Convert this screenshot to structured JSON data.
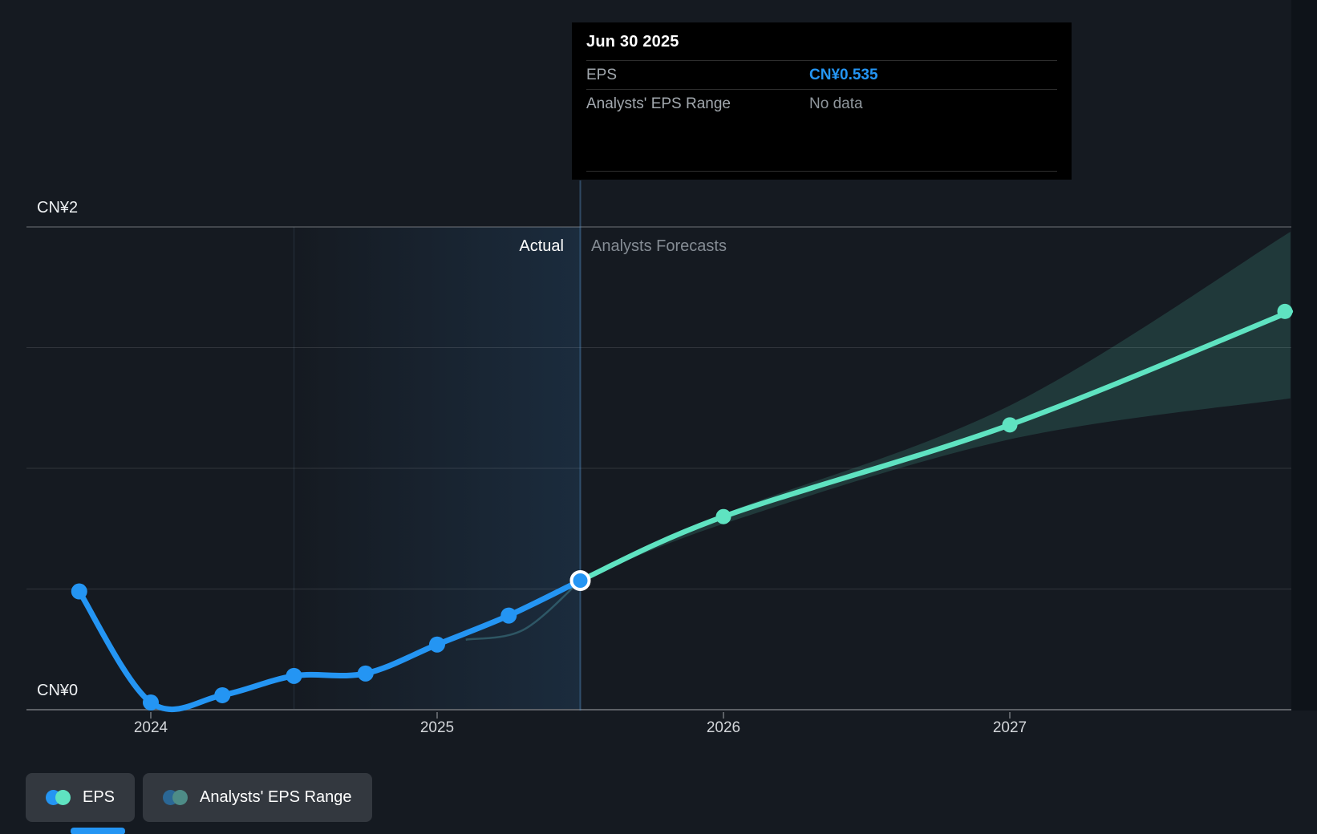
{
  "tooltip": {
    "date": "Jun 30 2025",
    "rows": [
      {
        "label": "EPS",
        "value": "CN¥0.535",
        "value_color": "#2495f3"
      },
      {
        "label": "Analysts' EPS Range",
        "value": "No data",
        "value_color": "#8f969c"
      }
    ]
  },
  "zone_labels": {
    "actual": "Actual",
    "forecast": "Analysts Forecasts"
  },
  "legend": [
    {
      "label": "EPS",
      "colors": [
        "#2495f3",
        "#5fe3c1"
      ]
    },
    {
      "label": "Analysts' EPS Range",
      "colors": [
        "#2b6795",
        "#4e8c87"
      ]
    }
  ],
  "ui_colors": {
    "background": "#151a21",
    "tooltip_background": "#000000",
    "accent_blue": "#2495f3",
    "accent_mint": "#5fe3c1",
    "scrollbar_thumb": "#2495f3"
  },
  "chart_data": {
    "type": "line",
    "title": "EPS actual vs analysts forecast",
    "currency": "CN¥",
    "ylim": [
      0,
      2
    ],
    "xlim": [
      2023.57,
      2027.98
    ],
    "grid": true,
    "legend_position": "bottom-left",
    "y_gridlines": [
      0,
      0.5,
      1,
      1.5,
      2
    ],
    "y_ticks": [
      {
        "value": 2,
        "label": "CN¥2"
      },
      {
        "value": 0,
        "label": "CN¥0"
      }
    ],
    "x_ticks": [
      {
        "value": 2024,
        "label": "2024"
      },
      {
        "value": 2025,
        "label": "2025"
      },
      {
        "value": 2026,
        "label": "2026"
      },
      {
        "value": 2027,
        "label": "2027"
      }
    ],
    "divider_x": 2025.5,
    "highlight_band": [
      2024.5,
      2025.5
    ],
    "selected_point": {
      "x": 2025.5,
      "value": 0.535
    },
    "series": [
      {
        "name": "EPS",
        "kind": "actual",
        "color": "#2495f3",
        "x": [
          2023.75,
          2024.0,
          2024.25,
          2024.5,
          2024.75,
          2025.0,
          2025.25,
          2025.5
        ],
        "values": [
          0.49,
          0.03,
          0.06,
          0.14,
          0.15,
          0.27,
          0.39,
          0.535
        ]
      },
      {
        "name": "EPS analysts forecast",
        "kind": "forecast",
        "color": "#5fe3c1",
        "x": [
          2025.5,
          2026.0,
          2027.0,
          2027.98
        ],
        "values": [
          0.535,
          0.8,
          1.18,
          1.65
        ]
      }
    ],
    "range_series": {
      "name": "Analysts' EPS Range",
      "fill": "rgba(95,227,193,0.16)",
      "x": [
        2025.5,
        2026.0,
        2027.0,
        2027.98
      ],
      "upper": [
        0.535,
        0.81,
        1.26,
        1.98
      ],
      "lower": [
        0.535,
        0.77,
        1.12,
        1.29
      ]
    },
    "prior_forecast_hint": {
      "x": [
        2025.1,
        2025.3,
        2025.5
      ],
      "values": [
        0.29,
        0.33,
        0.535
      ]
    }
  }
}
